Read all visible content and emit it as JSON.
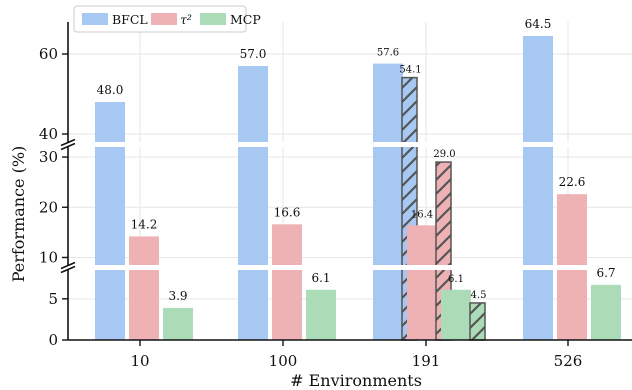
{
  "chart_data": {
    "type": "bar",
    "xlabel": "# Environments",
    "ylabel": "Performance (%)",
    "categories": [
      "10",
      "100",
      "191",
      "526"
    ],
    "series": [
      {
        "name": "BFCL",
        "color": "#a7c8f2",
        "values": [
          48.0,
          57.0,
          57.6,
          64.5
        ],
        "labels": [
          "48.0",
          "57.0",
          "57.6",
          "64.5"
        ]
      },
      {
        "name": "τ²",
        "color": "#eeb2b5",
        "values": [
          14.2,
          16.6,
          16.4,
          22.6
        ],
        "labels": [
          "14.2",
          "16.6",
          "16.4",
          "22.6"
        ]
      },
      {
        "name": "MCP",
        "color": "#abdcb7",
        "values": [
          3.9,
          6.1,
          6.1,
          6.7
        ],
        "labels": [
          "3.9",
          "6.1",
          "6.1",
          "6.7"
        ]
      }
    ],
    "hatched": [
      {
        "series": "BFCL",
        "category": "191",
        "value": 54.1,
        "label": "54.1"
      },
      {
        "series": "τ²",
        "category": "191",
        "value": 29.0,
        "label": "29.0"
      },
      {
        "series": "MCP",
        "category": "191",
        "value": 4.5,
        "label": "4.5"
      }
    ],
    "broken_axis": [
      {
        "range": [
          0,
          8.5
        ],
        "ticks": [
          0,
          5
        ]
      },
      {
        "range": [
          8.5,
          32
        ],
        "ticks": [
          10,
          20,
          30
        ]
      },
      {
        "range": [
          38,
          68
        ],
        "ticks": [
          40,
          60
        ]
      }
    ],
    "grid": true,
    "legend": "top-left"
  }
}
